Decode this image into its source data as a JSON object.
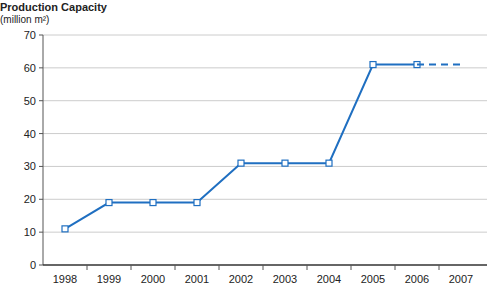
{
  "chart_data": {
    "type": "line",
    "title": "Production Capacity",
    "y_label": "(million m²)",
    "categories": [
      "1998",
      "1999",
      "2000",
      "2001",
      "2002",
      "2003",
      "2004",
      "2005",
      "2006",
      "2007"
    ],
    "series": [
      {
        "color": "#1f6fc1",
        "marker": "square",
        "line_style": "solid",
        "values": [
          11,
          19,
          19,
          19,
          31,
          31,
          31,
          61,
          61,
          null
        ]
      },
      {
        "color": "#1f6fc1",
        "marker": "none",
        "line_style": "dashed",
        "values": [
          null,
          null,
          null,
          null,
          null,
          null,
          null,
          null,
          61,
          61
        ]
      }
    ],
    "ylim": [
      0,
      70
    ],
    "yticks": [
      0,
      10,
      20,
      30,
      40,
      50,
      60,
      70
    ],
    "grid": true
  }
}
